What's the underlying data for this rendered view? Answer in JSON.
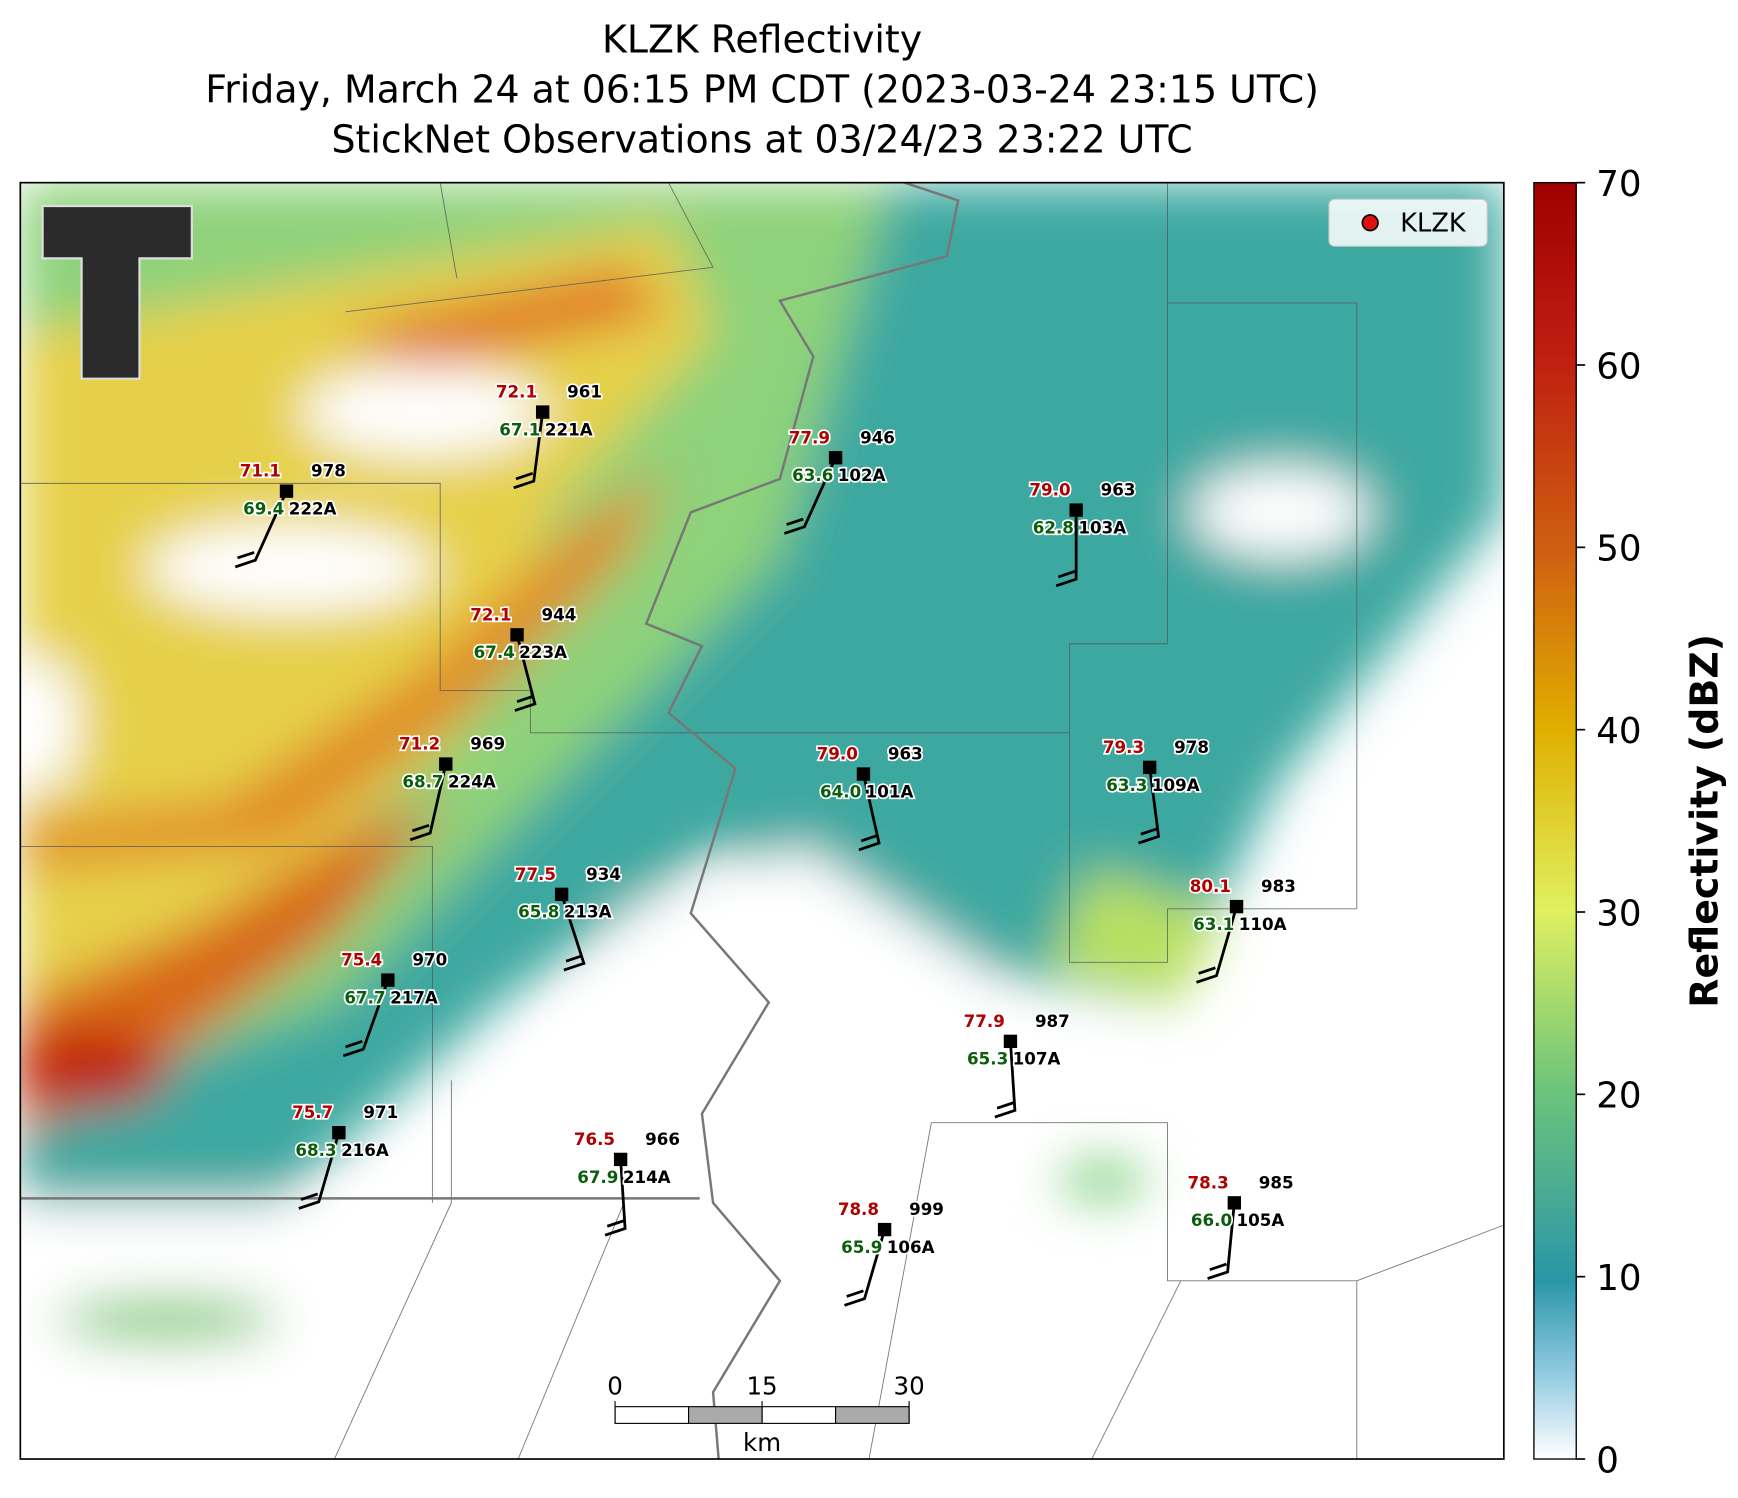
{
  "title": [
    "KLZK Reflectivity",
    "Friday, March 24 at 06:15 PM CDT (2023-03-24 23:15 UTC)",
    "StickNet Observations at 03/24/23 23:22 UTC"
  ],
  "legend": {
    "label": "KLZK"
  },
  "colorbar": {
    "label": "Reflectivity (dBZ)",
    "lim": [
      0,
      70
    ],
    "ticks": [
      0,
      10,
      20,
      30,
      40,
      50,
      60,
      70
    ]
  },
  "scalebar": {
    "ticks": [
      0,
      15,
      30
    ],
    "unit": "km"
  },
  "stations": [
    {
      "id": "221A",
      "temperature": "72.1",
      "pressure": "961",
      "dewpoint": "67.1"
    },
    {
      "id": "222A",
      "temperature": "71.1",
      "pressure": "978",
      "dewpoint": "69.4"
    },
    {
      "id": "102A",
      "temperature": "77.9",
      "pressure": "946",
      "dewpoint": "63.6"
    },
    {
      "id": "103A",
      "temperature": "79.0",
      "pressure": "963",
      "dewpoint": "62.8"
    },
    {
      "id": "223A",
      "temperature": "72.1",
      "pressure": "944",
      "dewpoint": "67.4"
    },
    {
      "id": "224A",
      "temperature": "71.2",
      "pressure": "969",
      "dewpoint": "68.7"
    },
    {
      "id": "101A",
      "temperature": "79.0",
      "pressure": "963",
      "dewpoint": "64.0"
    },
    {
      "id": "109A",
      "temperature": "79.3",
      "pressure": "978",
      "dewpoint": "63.3"
    },
    {
      "id": "213A",
      "temperature": "77.5",
      "pressure": "934",
      "dewpoint": "65.8"
    },
    {
      "id": "110A",
      "temperature": "80.1",
      "pressure": "983",
      "dewpoint": "63.1"
    },
    {
      "id": "217A",
      "temperature": "75.4",
      "pressure": "970",
      "dewpoint": "67.7"
    },
    {
      "id": "107A",
      "temperature": "77.9",
      "pressure": "987",
      "dewpoint": "65.3"
    },
    {
      "id": "216A",
      "temperature": "75.7",
      "pressure": "971",
      "dewpoint": "68.3"
    },
    {
      "id": "214A",
      "temperature": "76.5",
      "pressure": "966",
      "dewpoint": "67.9"
    },
    {
      "id": "106A",
      "temperature": "78.8",
      "pressure": "999",
      "dewpoint": "65.9"
    },
    {
      "id": "105A",
      "temperature": "78.3",
      "pressure": "985",
      "dewpoint": "66.0"
    }
  ]
}
